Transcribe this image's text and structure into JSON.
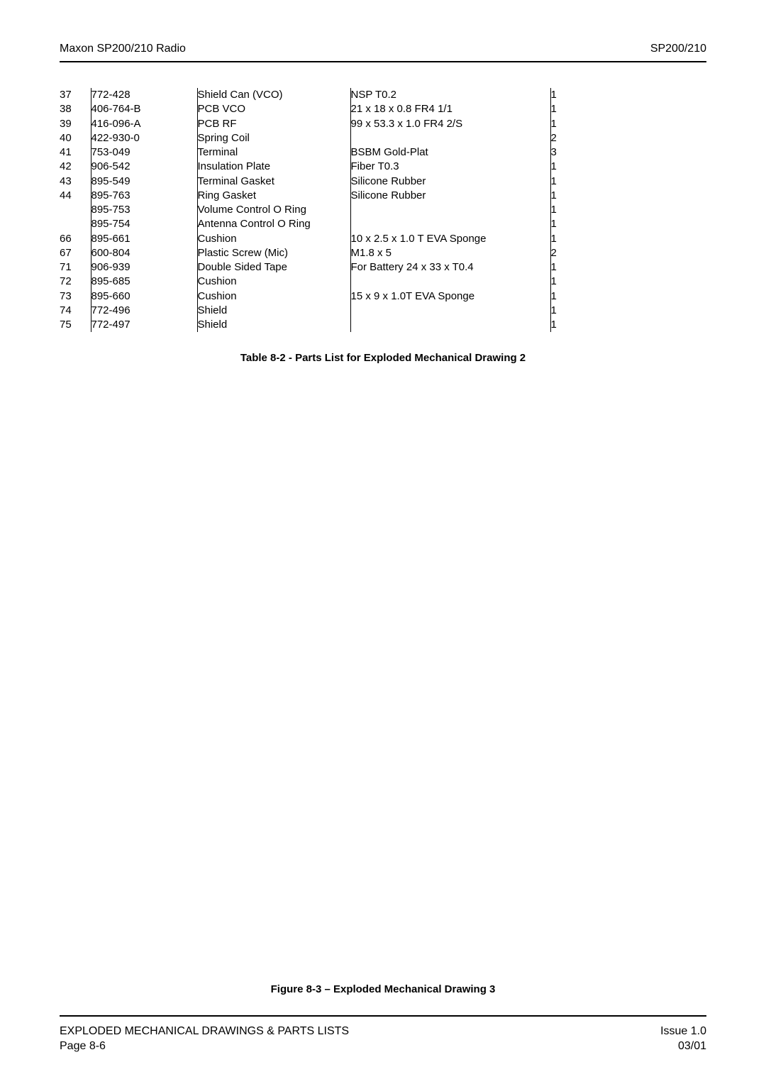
{
  "header": {
    "left": "Maxon SP200/210 Radio",
    "right": "SP200/210"
  },
  "table": {
    "caption": "Table 8-2 - Parts List for Exploded Mechanical Drawing 2",
    "columns": {
      "num_width": 44,
      "part_width": 150,
      "desc_width": 216,
      "spec_width": 282,
      "qty_width": 32
    },
    "rows": [
      {
        "num": "37",
        "part": "772-428",
        "desc": "Shield Can (VCO)",
        "spec": "NSP T0.2",
        "qty": "1"
      },
      {
        "num": "38",
        "part": "406-764-B",
        "desc": "PCB VCO",
        "spec": "21 x 18 x 0.8 FR4 1/1",
        "qty": "1"
      },
      {
        "num": "39",
        "part": "416-096-A",
        "desc": "PCB RF",
        "spec": "99 x 53.3 x 1.0 FR4 2/S",
        "qty": "1"
      },
      {
        "num": "40",
        "part": "422-930-0",
        "desc": "Spring Coil",
        "spec": "",
        "qty": "2"
      },
      {
        "num": "41",
        "part": "753-049",
        "desc": "Terminal",
        "spec": "BSBM Gold-Plat",
        "qty": "3"
      },
      {
        "num": "42",
        "part": "906-542",
        "desc": "Insulation Plate",
        "spec": "Fiber T0.3",
        "qty": "1"
      },
      {
        "num": "43",
        "part": "895-549",
        "desc": "Terminal Gasket",
        "spec": "Silicone Rubber",
        "qty": "1"
      },
      {
        "num": "44",
        "part": "895-763",
        "desc": "Ring Gasket",
        "spec": "Silicone Rubber",
        "qty": "1"
      },
      {
        "num": "",
        "part": "895-753",
        "desc": "Volume Control O Ring",
        "spec": "",
        "qty": "1"
      },
      {
        "num": "",
        "part": "895-754",
        "desc": "Antenna Control O Ring",
        "spec": "",
        "qty": "1"
      },
      {
        "num": "66",
        "part": "895-661",
        "desc": "Cushion",
        "spec": "10 x 2.5 x 1.0 T EVA Sponge",
        "qty": "1"
      },
      {
        "num": "67",
        "part": "600-804",
        "desc": "Plastic Screw (Mic)",
        "spec": "M1.8 x 5",
        "qty": "2"
      },
      {
        "num": "71",
        "part": "906-939",
        "desc": "Double Sided Tape",
        "spec": "For Battery 24 x 33 x T0.4",
        "qty": "1"
      },
      {
        "num": "72",
        "part": "895-685",
        "desc": "Cushion",
        "spec": "",
        "qty": "1"
      },
      {
        "num": "73",
        "part": "895-660",
        "desc": "Cushion",
        "spec": "15 x 9 x 1.0T EVA Sponge",
        "qty": "1"
      },
      {
        "num": "74",
        "part": "772-496",
        "desc": "Shield",
        "spec": "",
        "qty": "1"
      },
      {
        "num": "75",
        "part": "772-497",
        "desc": "Shield",
        "spec": "",
        "qty": "1"
      }
    ]
  },
  "figure": {
    "caption": "Figure 8-3 – Exploded Mechanical Drawing 3"
  },
  "footer": {
    "left_line1": "EXPLODED MECHANICAL DRAWINGS & PARTS LISTS",
    "left_line2": "Page 8-6",
    "right_line1": "Issue 1.0",
    "right_line2": "03/01"
  },
  "style": {
    "body_font_size": 14,
    "table_font_size": 15,
    "caption_font_size": 15,
    "header_font_size": 16,
    "footer_font_size": 16,
    "rule_color": "#000000",
    "rule_width": 2,
    "text_color": "#000000",
    "background_color": "#ffffff"
  }
}
